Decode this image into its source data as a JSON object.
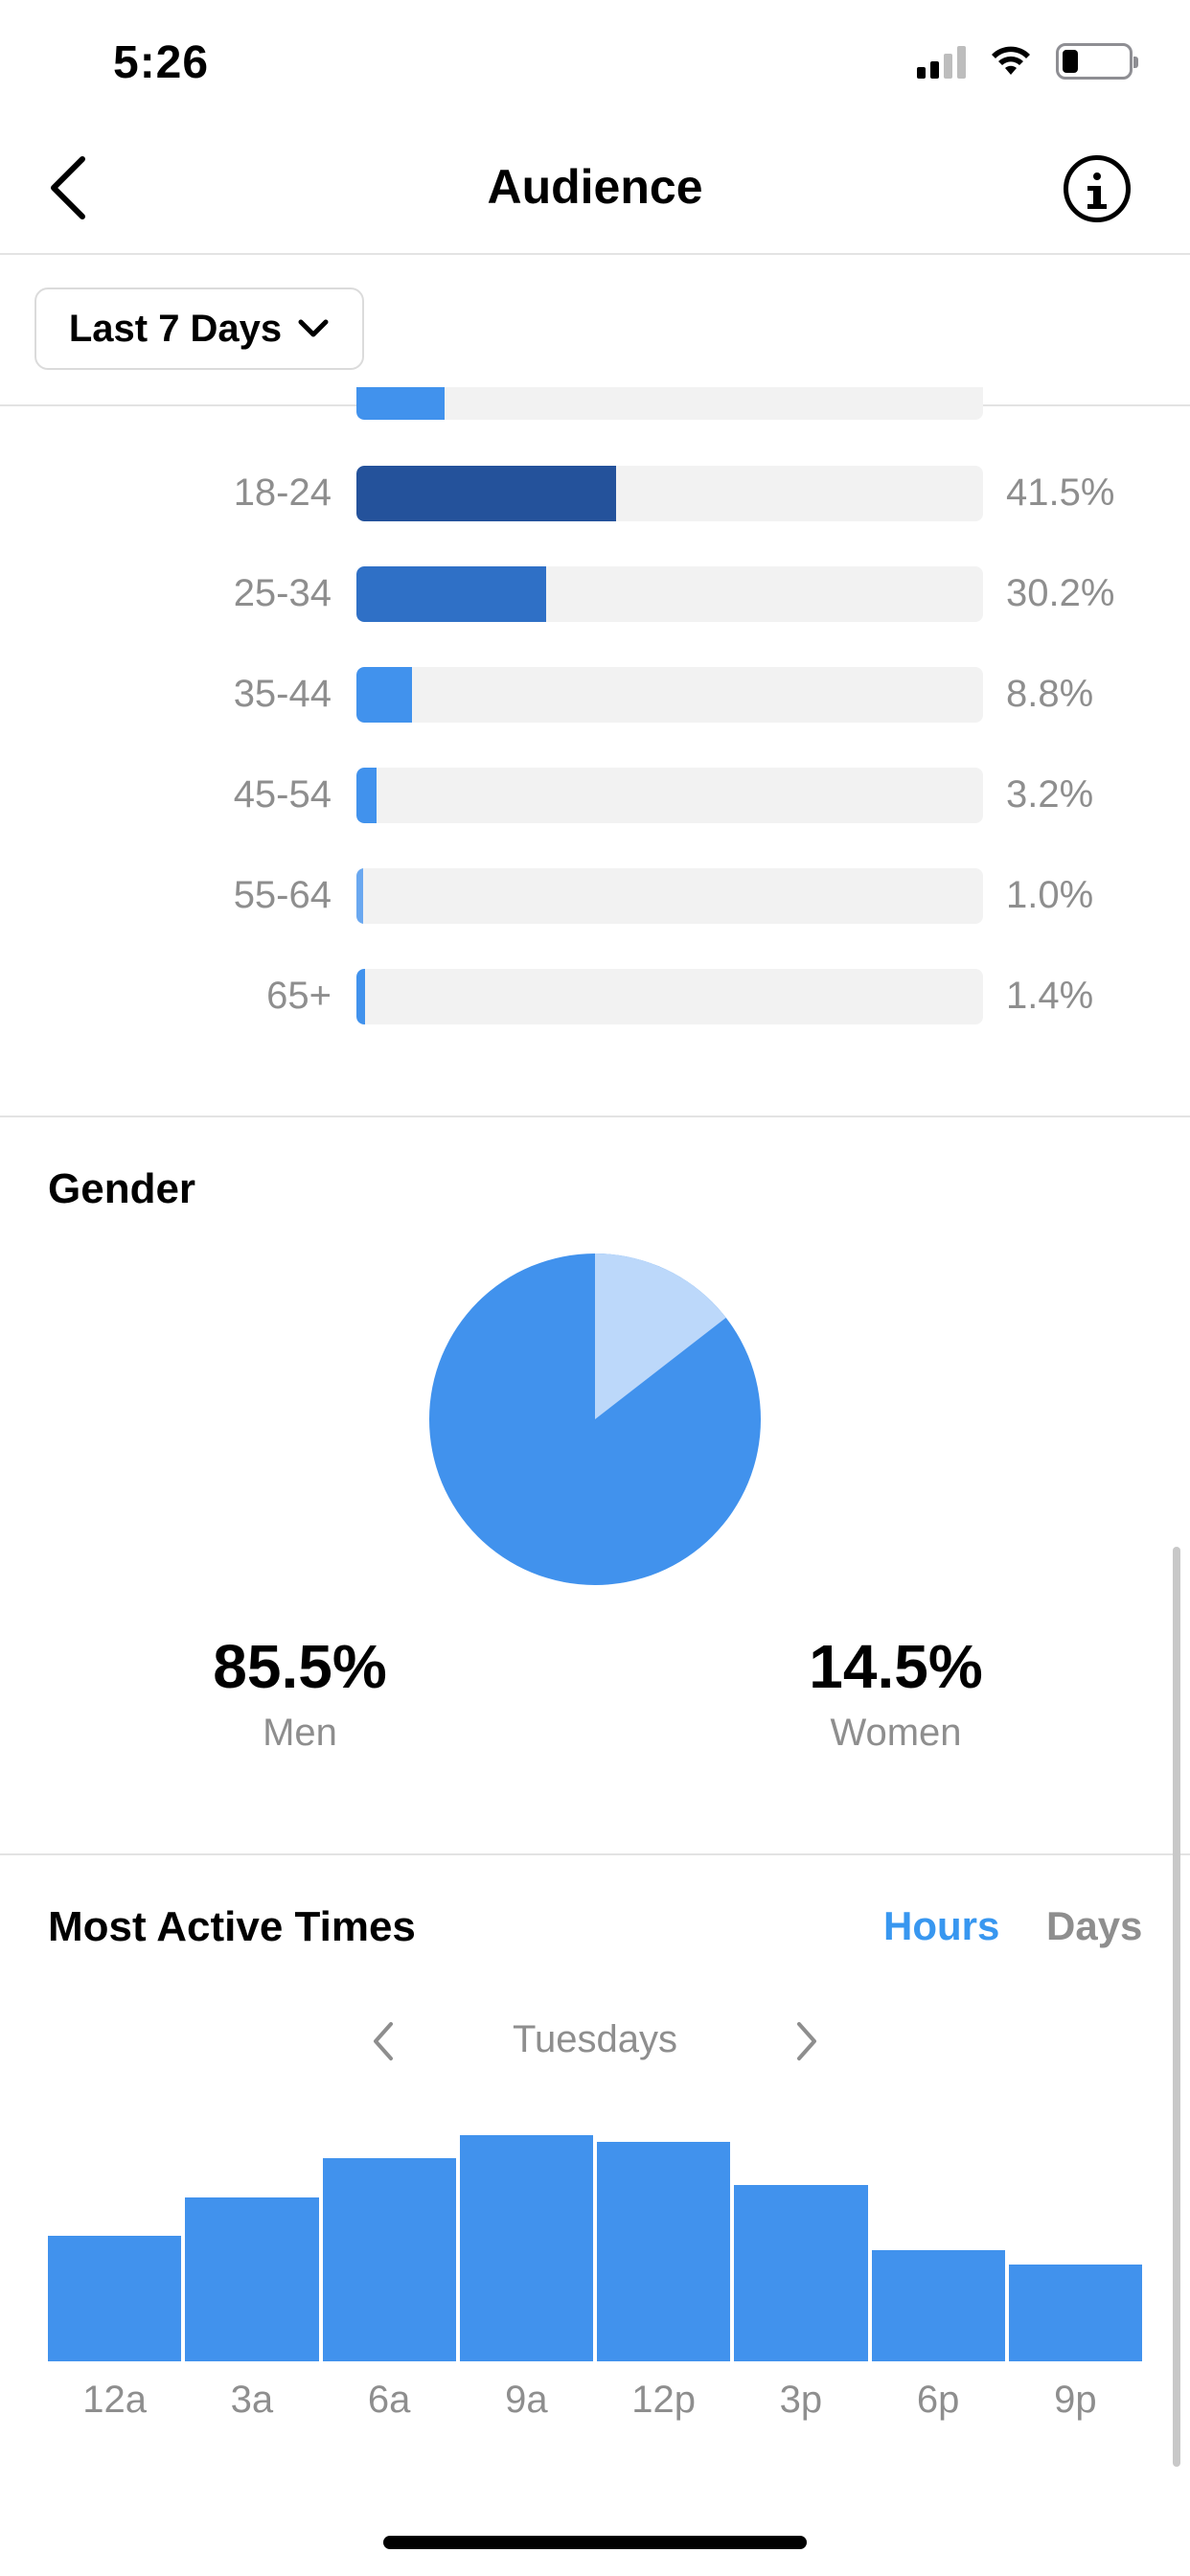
{
  "status_bar": {
    "time": "5:26"
  },
  "header": {
    "title": "Audience"
  },
  "filter": {
    "label": "Last 7 Days"
  },
  "colors": {
    "dark_blue": "#24529b",
    "mid_blue": "#2f70c6",
    "blue": "#4192ed",
    "light_blue": "#bcd8fa",
    "track": "#f2f2f2"
  },
  "age": {
    "rows": [
      {
        "label": "18-24",
        "percent": "41.5%",
        "value": 41.5
      },
      {
        "label": "25-34",
        "percent": "30.2%",
        "value": 30.2
      },
      {
        "label": "35-44",
        "percent": "8.8%",
        "value": 8.8
      },
      {
        "label": "45-54",
        "percent": "3.2%",
        "value": 3.2
      },
      {
        "label": "55-64",
        "percent": "1.0%",
        "value": 1.0
      },
      {
        "label": "65+",
        "percent": "1.4%",
        "value": 1.4
      }
    ],
    "partial_value": 14
  },
  "gender": {
    "title": "Gender",
    "men": {
      "value": "85.5%",
      "label": "Men"
    },
    "women": {
      "value": "14.5%",
      "label": "Women"
    }
  },
  "active_times": {
    "title": "Most Active Times",
    "tabs": {
      "hours": "Hours",
      "days": "Days"
    },
    "day": "Tuesdays"
  },
  "chart_data": {
    "type": "bar",
    "categories": [
      "12a",
      "3a",
      "6a",
      "9a",
      "12p",
      "3p",
      "6p",
      "9p"
    ],
    "values": [
      70,
      91,
      113,
      126,
      122,
      98,
      62,
      54
    ],
    "ylim": [
      0,
      130
    ]
  }
}
